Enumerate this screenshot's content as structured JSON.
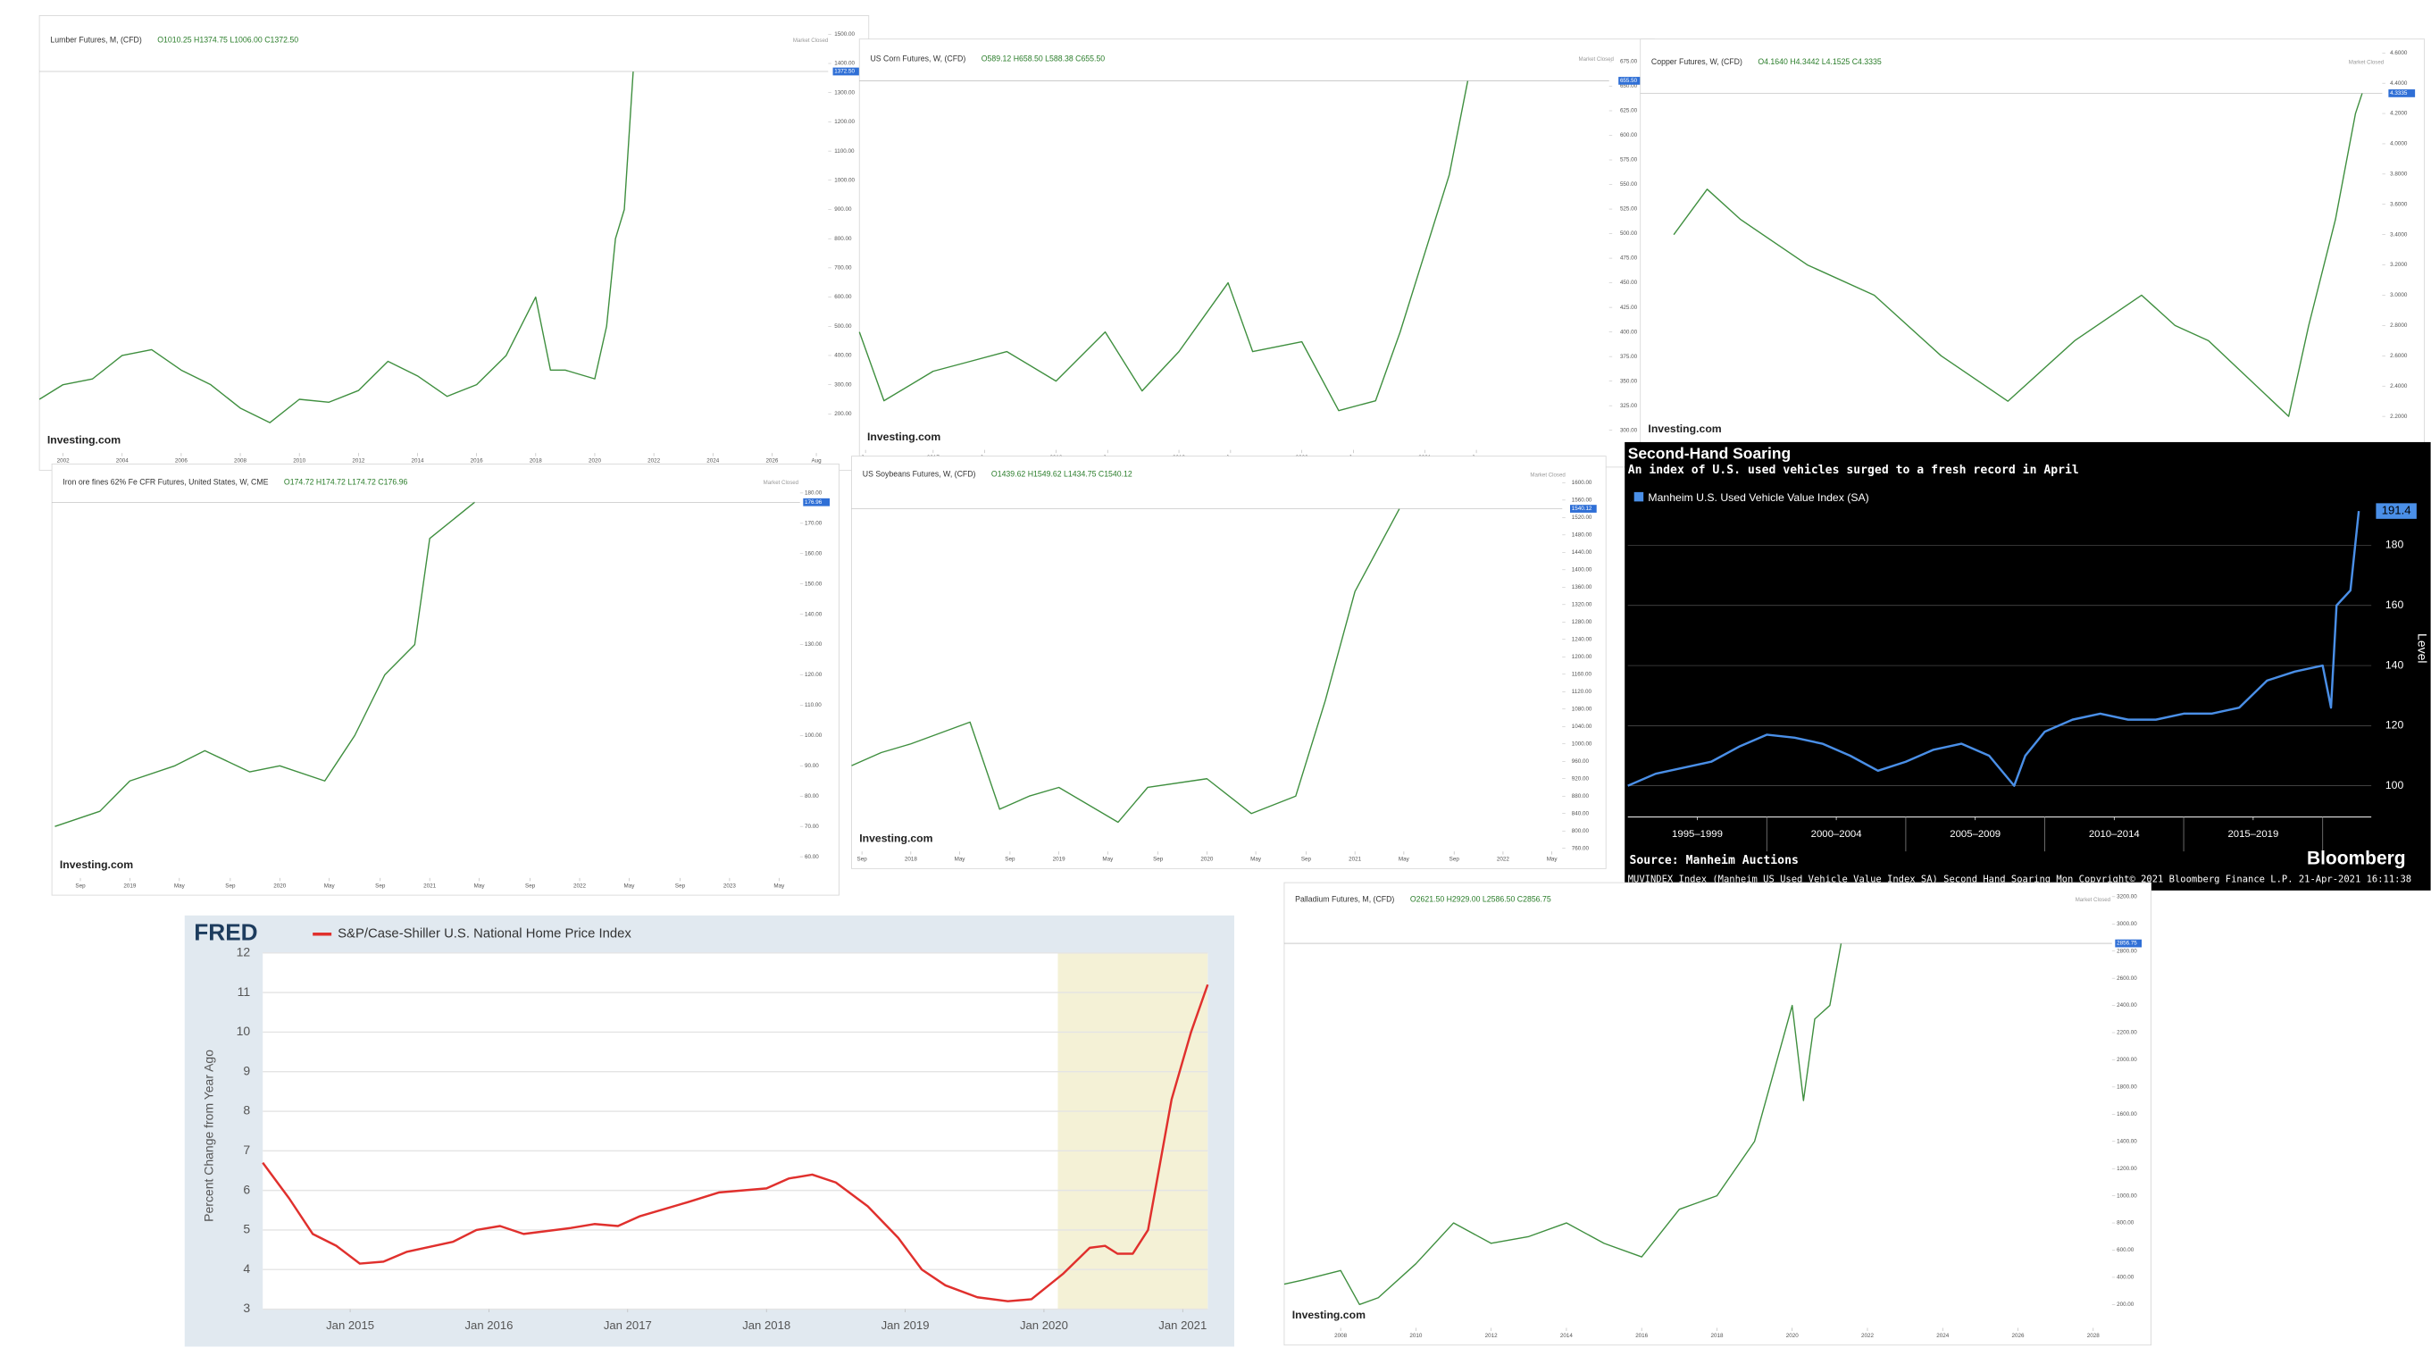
{
  "chart_data": [
    {
      "type": "line",
      "title": "Lumber Futures, M, (CFD)",
      "ohlc": "O1010.25 H1374.75 L1006.00 C1372.50",
      "status": "Market Closed",
      "watermark": "Investing.com",
      "color": "#3f8f3f",
      "grid": false,
      "x": [
        2001.2,
        2002,
        2003,
        2004,
        2005,
        2006,
        2007,
        2008,
        2009,
        2010,
        2011,
        2012,
        2013,
        2014,
        2015,
        2016,
        2017,
        2018,
        2018.5,
        2019,
        2020,
        2020.4,
        2020.7,
        2021,
        2021.3
      ],
      "values": [
        250,
        300,
        320,
        400,
        420,
        350,
        300,
        220,
        170,
        250,
        240,
        280,
        380,
        330,
        260,
        300,
        400,
        600,
        350,
        350,
        320,
        500,
        800,
        900,
        1372.5
      ],
      "last_value_label": "1372.50",
      "xlim": [
        2001.2,
        2027.9
      ],
      "ylim": [
        66,
        1537
      ],
      "xticks": [
        2002,
        2004,
        2006,
        2008,
        2010,
        2012,
        2014,
        2016,
        2018,
        2020,
        2022,
        2024,
        2026,
        {
          "value": 2027.5,
          "label": "Aug"
        }
      ],
      "yticks": [
        {
          "value": 200,
          "label": "200.00"
        },
        {
          "value": 300,
          "label": "300.00"
        },
        {
          "value": 400,
          "label": "400.00"
        },
        {
          "value": 500,
          "label": "500.00"
        },
        {
          "value": 600,
          "label": "600.00"
        },
        {
          "value": 700,
          "label": "700.00"
        },
        {
          "value": 800,
          "label": "800.00"
        },
        {
          "value": 900,
          "label": "900.00"
        },
        {
          "value": 1000,
          "label": "1000.00"
        },
        {
          "value": 1100,
          "label": "1100.00"
        },
        {
          "value": 1200,
          "label": "1200.00"
        },
        {
          "value": 1300,
          "label": "1300.00"
        },
        {
          "value": 1400,
          "label": "1400.00"
        },
        {
          "value": 1500,
          "label": "1500.00"
        }
      ]
    },
    {
      "type": "line",
      "title": "US Corn Futures, W, (CFD)",
      "ohlc": "O589.12 H658.50 L588.38 C655.50",
      "status": "Market Closed",
      "watermark": "Investing.com",
      "color": "#3f8f3f",
      "grid": false,
      "x": [
        2016.4,
        2016.6,
        2017,
        2017.3,
        2017.6,
        2018,
        2018.4,
        2018.7,
        2019,
        2019.4,
        2019.6,
        2020,
        2020.3,
        2020.6,
        2020.8,
        2021,
        2021.2,
        2021.35
      ],
      "values": [
        400,
        330,
        360,
        370,
        380,
        350,
        400,
        340,
        380,
        450,
        380,
        390,
        320,
        330,
        400,
        480,
        560,
        655.5
      ],
      "last_value_label": "655.50",
      "xlim": [
        2016.4,
        2022.5
      ],
      "ylim": [
        280,
        690
      ],
      "xticks": [
        {
          "value": 2016.45,
          "label": "Jun"
        },
        2017,
        {
          "value": 2017.42,
          "label": "Jun"
        },
        2018,
        {
          "value": 2018.42,
          "label": "Jun"
        },
        2019,
        {
          "value": 2019.42,
          "label": "Jun"
        },
        2020,
        {
          "value": 2020.42,
          "label": "Jun"
        },
        2021,
        {
          "value": 2021.42,
          "label": "Jun"
        }
      ],
      "yticks": [
        {
          "value": 300,
          "label": "300.00"
        },
        {
          "value": 325,
          "label": "325.00"
        },
        {
          "value": 350,
          "label": "350.00"
        },
        {
          "value": 375,
          "label": "375.00"
        },
        {
          "value": 400,
          "label": "400.00"
        },
        {
          "value": 425,
          "label": "425.00"
        },
        {
          "value": 450,
          "label": "450.00"
        },
        {
          "value": 475,
          "label": "475.00"
        },
        {
          "value": 500,
          "label": "500.00"
        },
        {
          "value": 525,
          "label": "525.00"
        },
        {
          "value": 550,
          "label": "550.00"
        },
        {
          "value": 575,
          "label": "575.00"
        },
        {
          "value": 600,
          "label": "600.00"
        },
        {
          "value": 625,
          "label": "625.00"
        },
        {
          "value": 650,
          "label": "650.00"
        },
        {
          "value": 675,
          "label": "675.00"
        }
      ]
    },
    {
      "type": "line",
      "title": "Copper Futures, W, (CFD)",
      "ohlc": "O4.1640 H4.3442 L4.1525 C4.3335",
      "status": "Market Closed",
      "watermark": "Investing.com",
      "color": "#3f8f3f",
      "grid": false,
      "x": [
        2011,
        2011.5,
        2012,
        2013,
        2014,
        2015,
        2016,
        2017,
        2018,
        2018.5,
        2019,
        2020.2,
        2020.5,
        2020.9,
        2021.2,
        2021.3
      ],
      "values": [
        3.4,
        3.7,
        3.5,
        3.2,
        3.0,
        2.6,
        2.3,
        2.7,
        3.0,
        2.8,
        2.7,
        2.2,
        2.8,
        3.5,
        4.2,
        4.3335
      ],
      "last_value_label": "4.3335",
      "xlim": [
        2010.5,
        2021.6
      ],
      "ylim": [
        2.03,
        4.64
      ],
      "yticks": [
        {
          "value": 2.2,
          "label": "2.2000"
        },
        {
          "value": 2.4,
          "label": "2.4000"
        },
        {
          "value": 2.6,
          "label": "2.6000"
        },
        {
          "value": 2.8,
          "label": "2.8000"
        },
        {
          "value": 3,
          "label": "3.0000"
        },
        {
          "value": 3.2,
          "label": "3.2000"
        },
        {
          "value": 3.4,
          "label": "3.4000"
        },
        {
          "value": 3.6,
          "label": "3.6000"
        },
        {
          "value": 3.8,
          "label": "3.8000"
        },
        {
          "value": 4,
          "label": "4.0000"
        },
        {
          "value": 4.2,
          "label": "4.2000"
        },
        {
          "value": 4.4,
          "label": "4.4000"
        },
        {
          "value": 4.6,
          "label": "4.6000"
        }
      ]
    },
    {
      "type": "line",
      "title": "Iron ore fines 62% Fe CFR Futures, United States, W, CME",
      "ohlc": "O174.72 H174.72 L174.72 C176.96",
      "status": "Market Closed",
      "watermark": "Investing.com",
      "color": "#3f8f3f",
      "grid": false,
      "x": [
        2018.5,
        2018.8,
        2019,
        2019.3,
        2019.5,
        2019.8,
        2020,
        2020.3,
        2020.5,
        2020.7,
        2020.9,
        2021,
        2021.3
      ],
      "values": [
        70,
        75,
        85,
        90,
        95,
        88,
        90,
        85,
        100,
        120,
        130,
        165,
        176.96
      ],
      "last_value_label": "176.96",
      "xlim": [
        2018.48,
        2023.47
      ],
      "ylim": [
        53,
        187
      ],
      "xticks": [
        {
          "value": 2018.67,
          "label": "Sep"
        },
        2019,
        {
          "value": 2019.33,
          "label": "May"
        },
        {
          "value": 2019.67,
          "label": "Sep"
        },
        2020,
        {
          "value": 2020.33,
          "label": "May"
        },
        {
          "value": 2020.67,
          "label": "Sep"
        },
        2021,
        {
          "value": 2021.33,
          "label": "May"
        },
        {
          "value": 2021.67,
          "label": "Sep"
        },
        2022,
        {
          "value": 2022.33,
          "label": "May"
        },
        {
          "value": 2022.67,
          "label": "Sep"
        },
        2023,
        {
          "value": 2023.33,
          "label": "May"
        }
      ],
      "yticks": [
        {
          "value": 60,
          "label": "60.00"
        },
        {
          "value": 70,
          "label": "70.00"
        },
        {
          "value": 80,
          "label": "80.00"
        },
        {
          "value": 90,
          "label": "90.00"
        },
        {
          "value": 100,
          "label": "100.00"
        },
        {
          "value": 110,
          "label": "110.00"
        },
        {
          "value": 120,
          "label": "120.00"
        },
        {
          "value": 130,
          "label": "130.00"
        },
        {
          "value": 140,
          "label": "140.00"
        },
        {
          "value": 150,
          "label": "150.00"
        },
        {
          "value": 160,
          "label": "160.00"
        },
        {
          "value": 170,
          "label": "170.00"
        },
        {
          "value": 180,
          "label": "180.00"
        }
      ]
    },
    {
      "type": "line",
      "title": "US Soybeans Futures, W, (CFD)",
      "ohlc": "O1439.62 H1549.62 L1434.75 C1540.12",
      "status": "Market Closed",
      "watermark": "Investing.com",
      "color": "#3f8f3f",
      "grid": false,
      "x": [
        2017.6,
        2017.8,
        2018,
        2018.4,
        2018.6,
        2018.8,
        2019,
        2019.4,
        2019.6,
        2020,
        2020.3,
        2020.6,
        2020.8,
        2021,
        2021.3
      ],
      "values": [
        950,
        980,
        1000,
        1050,
        850,
        880,
        900,
        820,
        900,
        920,
        840,
        880,
        1100,
        1350,
        1540.12
      ],
      "last_value_label": "1540.12",
      "xlim": [
        2017.6,
        2022.4
      ],
      "ylim": [
        753,
        1643
      ],
      "xticks": [
        {
          "value": 2017.67,
          "label": "Sep"
        },
        2018,
        {
          "value": 2018.33,
          "label": "May"
        },
        {
          "value": 2018.67,
          "label": "Sep"
        },
        2019,
        {
          "value": 2019.33,
          "label": "May"
        },
        {
          "value": 2019.67,
          "label": "Sep"
        },
        2020,
        {
          "value": 2020.33,
          "label": "May"
        },
        {
          "value": 2020.67,
          "label": "Sep"
        },
        2021,
        {
          "value": 2021.33,
          "label": "May"
        },
        {
          "value": 2021.67,
          "label": "Sep"
        },
        2022,
        {
          "value": 2022.33,
          "label": "May"
        }
      ],
      "yticks": [
        {
          "value": 760,
          "label": "760.00"
        },
        {
          "value": 800,
          "label": "800.00"
        },
        {
          "value": 840,
          "label": "840.00"
        },
        {
          "value": 880,
          "label": "880.00"
        },
        {
          "value": 920,
          "label": "920.00"
        },
        {
          "value": 960,
          "label": "960.00"
        },
        {
          "value": 1000,
          "label": "1000.00"
        },
        {
          "value": 1040,
          "label": "1040.00"
        },
        {
          "value": 1080,
          "label": "1080.00"
        },
        {
          "value": 1120,
          "label": "1120.00"
        },
        {
          "value": 1160,
          "label": "1160.00"
        },
        {
          "value": 1200,
          "label": "1200.00"
        },
        {
          "value": 1240,
          "label": "1240.00"
        },
        {
          "value": 1280,
          "label": "1280.00"
        },
        {
          "value": 1320,
          "label": "1320.00"
        },
        {
          "value": 1360,
          "label": "1360.00"
        },
        {
          "value": 1400,
          "label": "1400.00"
        },
        {
          "value": 1440,
          "label": "1440.00"
        },
        {
          "value": 1480,
          "label": "1480.00"
        },
        {
          "value": 1520,
          "label": "1520.00"
        },
        {
          "value": 1560,
          "label": "1560.00"
        },
        {
          "value": 1600,
          "label": "1600.00"
        }
      ]
    },
    {
      "type": "line",
      "title": "Second-Hand Soaring",
      "subtitle": "An index of U.S. used vehicles surged to a fresh record in April",
      "series": [
        {
          "name": "Manheim U.S. Used Vehicle Value Index (SA)",
          "color": "#4a8fe7"
        }
      ],
      "grid": true,
      "x": [
        1995,
        1996,
        1997,
        1998,
        1999,
        2000,
        2001,
        2002,
        2003,
        2004,
        2005,
        2006,
        2007,
        2008,
        2008.9,
        2009.3,
        2010,
        2011,
        2012,
        2013,
        2014,
        2015,
        2016,
        2017,
        2018,
        2019,
        2020,
        2020.3,
        2020.5,
        2021,
        2021.3
      ],
      "values": [
        100,
        104,
        106,
        108,
        113,
        117,
        116,
        114,
        110,
        105,
        108,
        112,
        114,
        110,
        100,
        110,
        118,
        122,
        124,
        122,
        122,
        124,
        124,
        126,
        135,
        138,
        140,
        126,
        160,
        165,
        191.4
      ],
      "last_value_label": "191.4",
      "y_label": "Level",
      "xlim": [
        1995,
        2021.75
      ],
      "ylim": [
        89.6,
        202.9
      ],
      "xticks": [
        {
          "value": 1997.5,
          "label": "1995–1999"
        },
        {
          "value": 2002.5,
          "label": "2000–2004"
        },
        {
          "value": 2007.5,
          "label": "2005–2009"
        },
        {
          "value": 2012.5,
          "label": "2010–2014"
        },
        {
          "value": 2017.5,
          "label": "2015–2019"
        }
      ],
      "yticks": [
        100,
        120,
        140,
        160,
        180
      ],
      "source": "Source: Manheim Auctions",
      "brand": "Bloomberg",
      "footer": "MUVINDEX Index (Manheim US Used Vehicle Value Index SA) Second Hand Soaring  Mon   Copyright© 2021 Bloomberg Finance L.P.      21-Apr-2021 16:11:38"
    },
    {
      "type": "line",
      "logo": "FRED",
      "series": [
        {
          "name": "S&P/Case-Shiller U.S. National Home Price Index",
          "color": "#e0302d"
        }
      ],
      "y_label": "Percent Change from Year Ago",
      "grid": true,
      "x": [
        2014.37,
        2014.56,
        2014.73,
        2014.9,
        2015.07,
        2015.24,
        2015.41,
        2015.74,
        2015.91,
        2016.08,
        2016.25,
        2016.59,
        2016.76,
        2016.93,
        2017.09,
        2017.43,
        2017.66,
        2018.0,
        2018.16,
        2018.33,
        2018.5,
        2018.73,
        2018.95,
        2019.12,
        2019.29,
        2019.52,
        2019.74,
        2019.91,
        2020.14,
        2020.33,
        2020.44,
        2020.53,
        2020.64,
        2020.75,
        2020.92,
        2021.06,
        2021.18
      ],
      "values": [
        6.7,
        5.8,
        4.9,
        4.6,
        4.15,
        4.2,
        4.45,
        4.7,
        5.0,
        5.1,
        4.9,
        5.05,
        5.15,
        5.1,
        5.35,
        5.7,
        5.95,
        6.05,
        6.3,
        6.4,
        6.2,
        5.6,
        4.8,
        4.0,
        3.6,
        3.3,
        3.2,
        3.25,
        3.9,
        4.55,
        4.6,
        4.4,
        4.4,
        5.0,
        8.3,
        10.0,
        11.2
      ],
      "shaded_x": [
        2020.1,
        2021.18
      ],
      "xlim": [
        2014.37,
        2021.18
      ],
      "ylim": [
        3,
        12
      ],
      "xticks": [
        {
          "value": 2015,
          "label": "Jan 2015"
        },
        {
          "value": 2016,
          "label": "Jan 2016"
        },
        {
          "value": 2017,
          "label": "Jan 2017"
        },
        {
          "value": 2018,
          "label": "Jan 2018"
        },
        {
          "value": 2019,
          "label": "Jan 2019"
        },
        {
          "value": 2020,
          "label": "Jan 2020"
        },
        {
          "value": 2021,
          "label": "Jan 2021"
        }
      ],
      "yticks": [
        3,
        4,
        5,
        6,
        7,
        8,
        9,
        10,
        11,
        12
      ]
    },
    {
      "type": "line",
      "title": "Palladium Futures, M, (CFD)",
      "ohlc": "O2621.50 H2929.00 L2586.50 C2856.75",
      "status": "Market Closed",
      "watermark": "Investing.com",
      "color": "#3f8f3f",
      "grid": false,
      "x": [
        2006.5,
        2007,
        2008,
        2008.5,
        2009,
        2010,
        2011,
        2012,
        2013,
        2014,
        2015,
        2016,
        2017,
        2018,
        2019,
        2020,
        2020.3,
        2020.6,
        2021,
        2021.3
      ],
      "values": [
        350,
        380,
        450,
        200,
        250,
        500,
        800,
        650,
        700,
        800,
        650,
        550,
        900,
        1000,
        1400,
        2400,
        1700,
        2300,
        2400,
        2856.75
      ],
      "last_value_label": "2856.75",
      "xlim": [
        2006.5,
        2028.5
      ],
      "ylim": [
        28,
        3246
      ],
      "xticks": [
        2008,
        2010,
        2012,
        2014,
        2016,
        2018,
        2020,
        2022,
        2024,
        2026,
        2028
      ],
      "yticks": [
        {
          "value": 200,
          "label": "200.00"
        },
        {
          "value": 400,
          "label": "400.00"
        },
        {
          "value": 600,
          "label": "600.00"
        },
        {
          "value": 800,
          "label": "800.00"
        },
        {
          "value": 1000,
          "label": "1000.00"
        },
        {
          "value": 1200,
          "label": "1200.00"
        },
        {
          "value": 1400,
          "label": "1400.00"
        },
        {
          "value": 1600,
          "label": "1600.00"
        },
        {
          "value": 1800,
          "label": "1800.00"
        },
        {
          "value": 2000,
          "label": "2000.00"
        },
        {
          "value": 2200,
          "label": "2200.00"
        },
        {
          "value": 2400,
          "label": "2400.00"
        },
        {
          "value": 2600,
          "label": "2600.00"
        },
        {
          "value": 2800,
          "label": "2800.00"
        },
        {
          "value": 3000,
          "label": "3000.00"
        },
        {
          "value": 3200,
          "label": "3200.00"
        }
      ]
    }
  ]
}
